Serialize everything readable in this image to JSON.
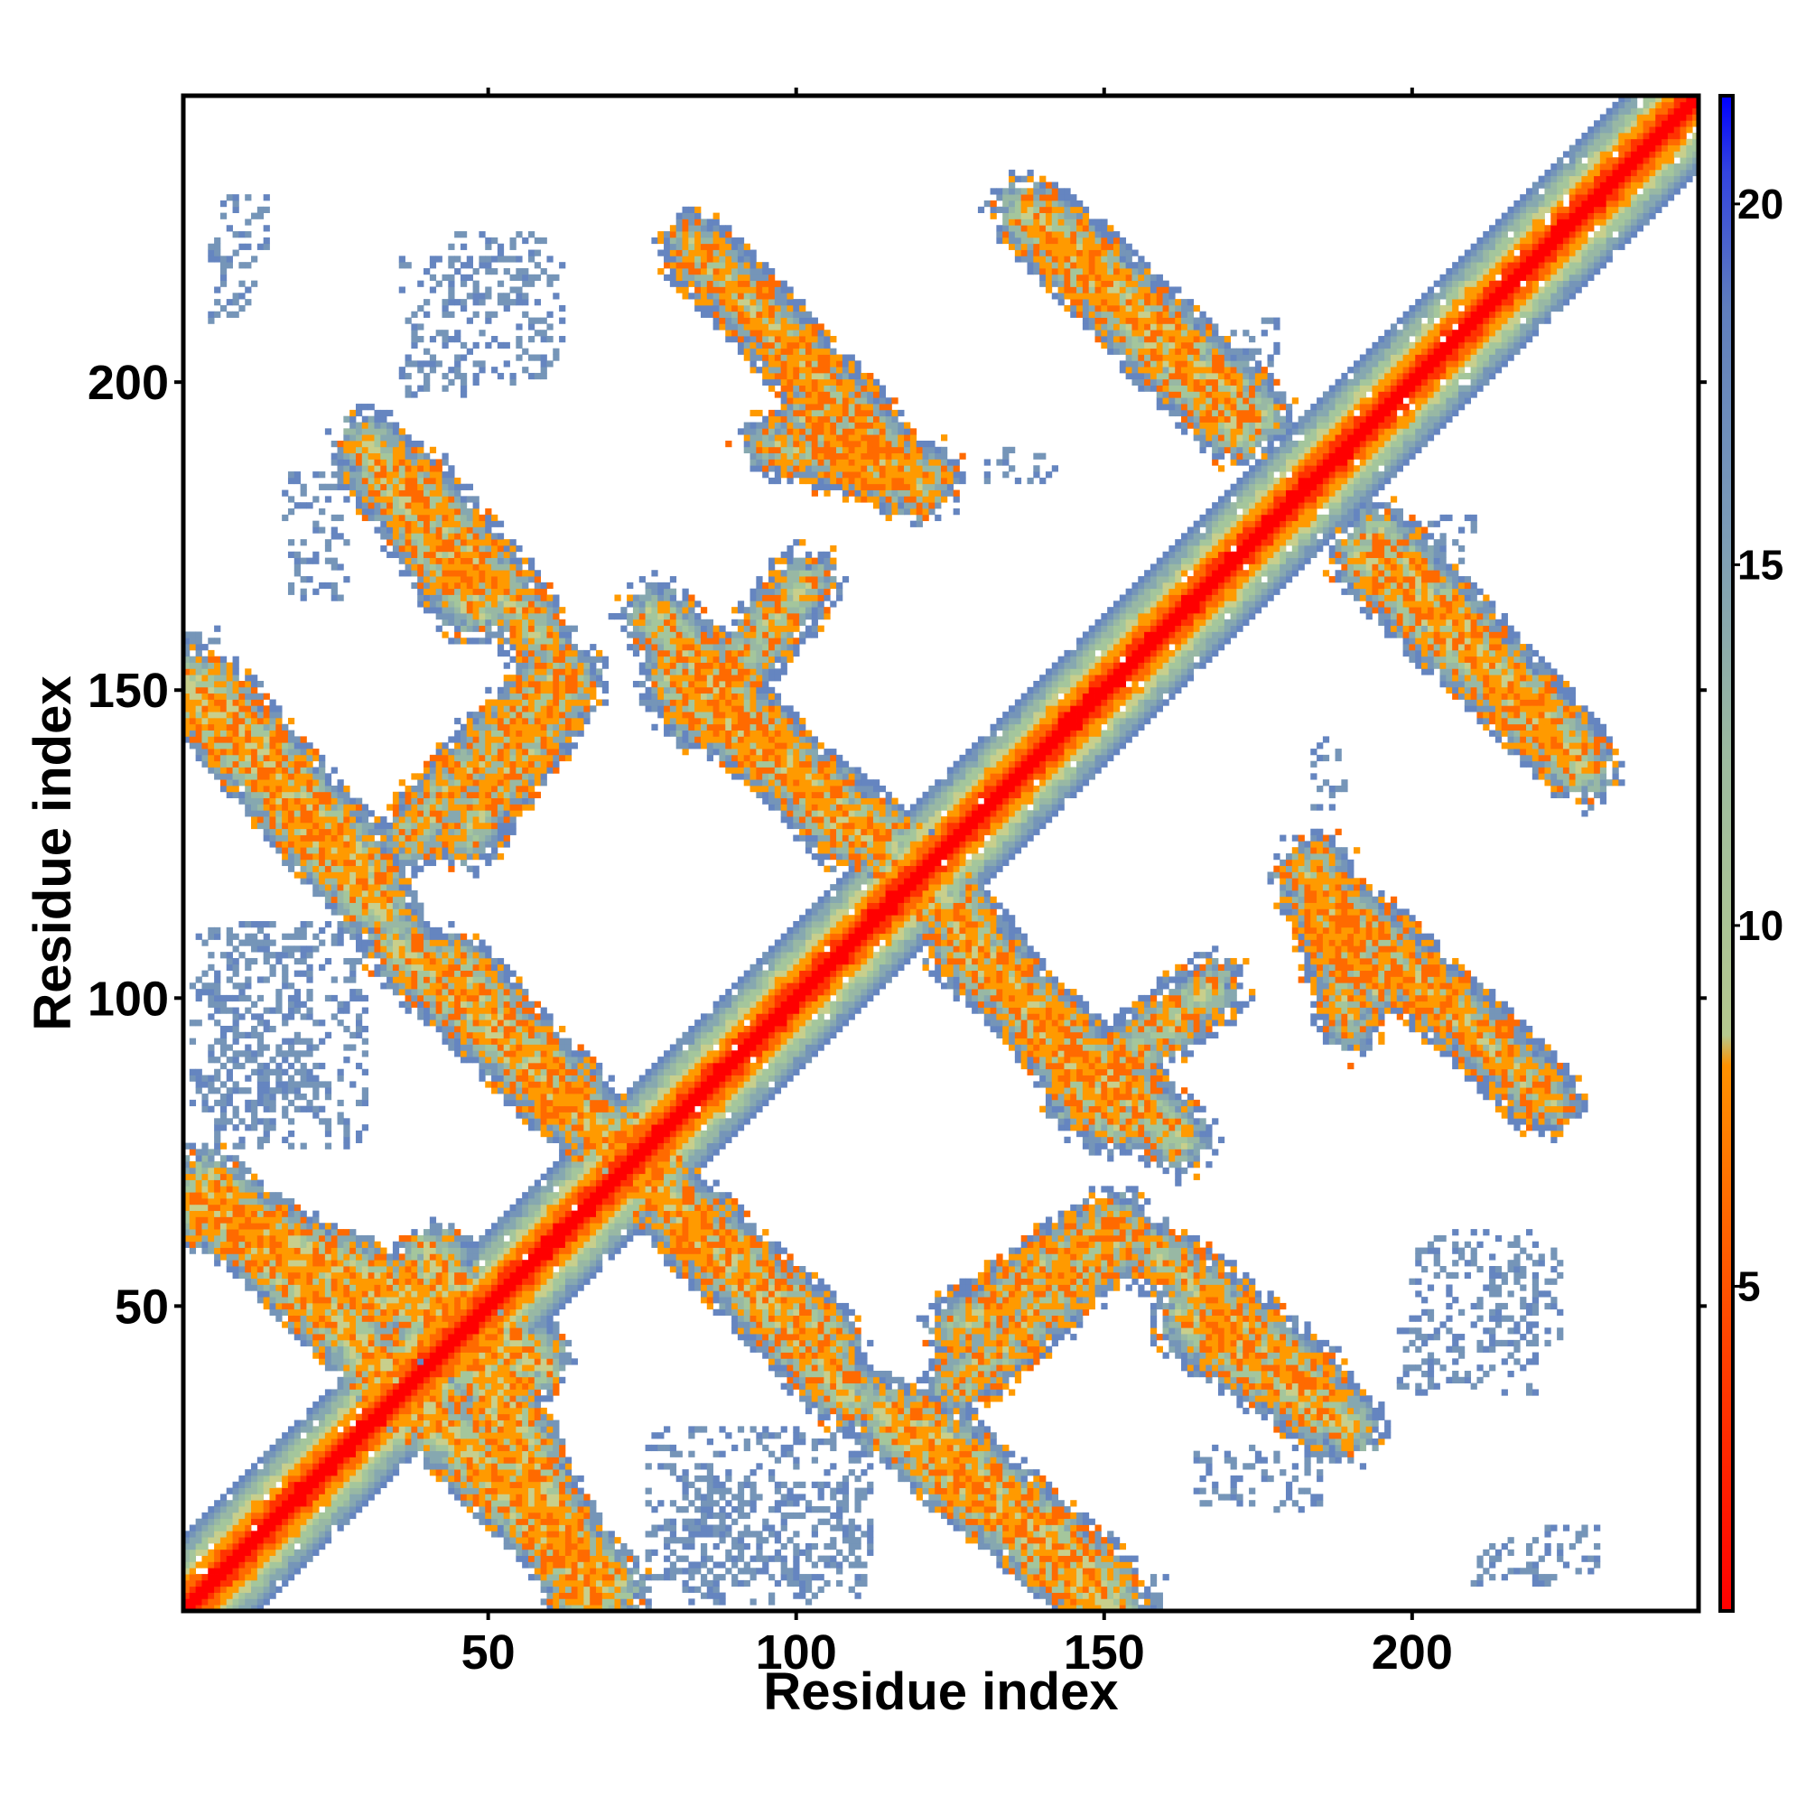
{
  "chart_data": {
    "type": "heatmap",
    "title": "",
    "xlabel": "Residue index",
    "ylabel": "Residue index",
    "xlim": [
      1,
      246
    ],
    "ylim": [
      1,
      246
    ],
    "xticks": [
      50,
      100,
      150,
      200
    ],
    "yticks": [
      50,
      100,
      150,
      200
    ],
    "colorbar": {
      "ticks": [
        5,
        10,
        15,
        20
      ],
      "range": [
        0.5,
        21.5
      ],
      "colors": [
        "#ff0000",
        "#ff8c00",
        "#a8c89c",
        "#6f8fb8",
        "#0000ff"
      ]
    },
    "background_value": 21,
    "diagonal": true,
    "contact_bands": [
      {
        "x": [
          1,
          33
        ],
        "y": [
          151,
          114
        ],
        "value": 11
      },
      {
        "x": [
          1,
          58
        ],
        "y": [
          67,
          41
        ],
        "value": 11
      },
      {
        "x": [
          34,
          70
        ],
        "y": [
          38,
          4
        ],
        "value": 11
      },
      {
        "x": [
          35,
          72
        ],
        "y": [
          109,
          74
        ],
        "value": 12
      },
      {
        "x": [
          30,
          48
        ],
        "y": [
          190,
          163
        ],
        "value": 12
      },
      {
        "x": [
          37,
          62
        ],
        "y": [
          126,
          154
        ],
        "value": 13
      },
      {
        "x": [
          77,
          108
        ],
        "y": [
          162,
          127
        ],
        "value": 12
      },
      {
        "x": [
          75,
          105
        ],
        "y": [
          72,
          44
        ],
        "value": 12
      },
      {
        "x": [
          84,
          108
        ],
        "y": [
          221,
          196
        ],
        "value": 13
      },
      {
        "x": [
          95,
          122
        ],
        "y": [
          190,
          185
        ],
        "value": 14
      },
      {
        "x": [
          120,
          150
        ],
        "y": [
          31,
          5
        ],
        "value": 12
      },
      {
        "x": [
          124,
          152
        ],
        "y": [
          116,
          80
        ],
        "value": 12
      },
      {
        "x": [
          126,
          152
        ],
        "y": [
          46,
          64
        ],
        "value": 13
      },
      {
        "x": [
          145,
          168
        ],
        "y": [
          83,
          102
        ],
        "value": 13
      },
      {
        "x": [
          140,
          175
        ],
        "y": [
          226,
          194
        ],
        "value": 12
      },
      {
        "x": [
          158,
          185
        ],
        "y": [
          59,
          37
        ],
        "value": 13
      },
      {
        "x": [
          182,
          194
        ],
        "y": [
          120,
          102
        ],
        "value": 13
      },
      {
        "x": [
          190,
          222
        ],
        "y": [
          114,
          83
        ],
        "value": 13
      },
      {
        "x": [
          192,
          228
        ],
        "y": [
          172,
          137
        ],
        "value": 12
      }
    ],
    "noise_regions": [
      {
        "x": [
          6,
          14
        ],
        "y": [
          230,
          222
        ]
      },
      {
        "x": [
          36,
          62
        ],
        "y": [
          220,
          200
        ]
      },
      {
        "x": [
          2,
          22
        ],
        "y": [
          110,
          80
        ]
      },
      {
        "x": [
          76,
          112
        ],
        "y": [
          30,
          5
        ]
      },
      {
        "x": [
          133,
          142
        ],
        "y": [
          188,
          184
        ]
      },
      {
        "x": [
          202,
          210
        ],
        "y": [
          178,
          170
        ]
      },
      {
        "x": [
          183,
          189
        ],
        "y": [
          135,
          130
        ]
      },
      {
        "x": [
          165,
          185
        ],
        "y": [
          27,
          17
        ]
      },
      {
        "x": [
          198,
          208
        ],
        "y": [
          46,
          37
        ]
      },
      {
        "x": [
          210,
          222
        ],
        "y": [
          12,
          5
        ]
      },
      {
        "x": [
          213,
          224
        ],
        "y": [
          59,
          44
        ]
      },
      {
        "x": [
          0,
          6
        ],
        "y": [
          160,
          150
        ]
      }
    ]
  }
}
